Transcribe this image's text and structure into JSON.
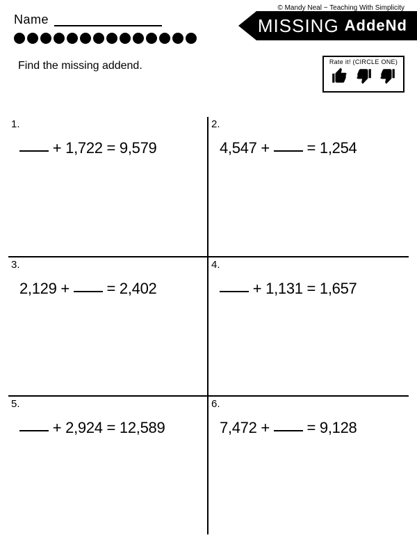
{
  "copyright": "© Mandy Neal ~ Teaching With Simplicity",
  "name_label": "Name",
  "title_word1": "MISSING",
  "title_word2": "AddeNd",
  "dot_count": 14,
  "instruction": "Find the missing addend.",
  "rate_title": "Rate it! (CIRCLE ONE)",
  "cells": [
    {
      "num": "1.",
      "prefix": "",
      "blank_first": true,
      "a": "1,722",
      "b": "9,579"
    },
    {
      "num": "2.",
      "prefix": "4,547",
      "blank_first": false,
      "a": "",
      "b": "1,254"
    },
    {
      "num": "3.",
      "prefix": "2,129",
      "blank_first": false,
      "a": "",
      "b": "2,402"
    },
    {
      "num": "4.",
      "prefix": "",
      "blank_first": true,
      "a": "1,131",
      "b": "1,657"
    },
    {
      "num": "5.",
      "prefix": "",
      "blank_first": true,
      "a": "2,924",
      "b": "12,589"
    },
    {
      "num": "6.",
      "prefix": "7,472",
      "blank_first": false,
      "a": "",
      "b": "9,128"
    }
  ],
  "colors": {
    "bg": "#ffffff",
    "fg": "#000000"
  }
}
